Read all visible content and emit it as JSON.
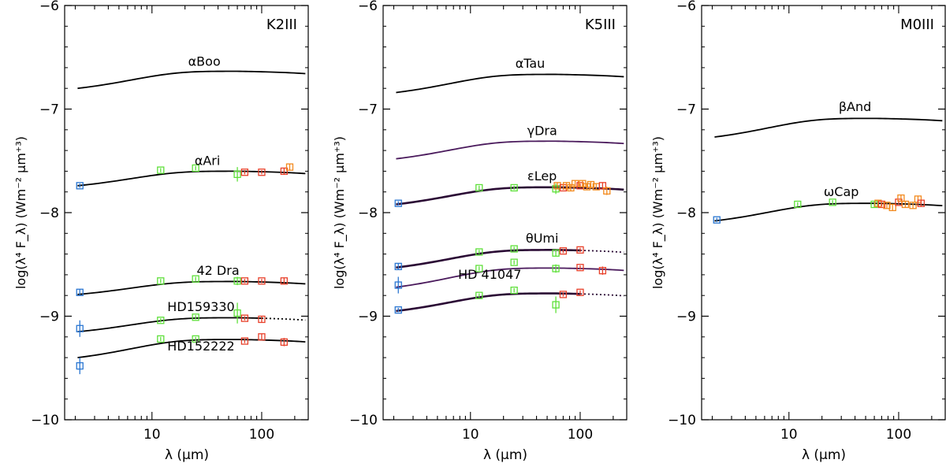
{
  "chart_data": [
    {
      "type": "line",
      "panel_label": "K2III",
      "xlabel": "λ (μm)",
      "ylabel": "log(λ⁴ F_λ) (Wm⁻² μm⁺³)",
      "xscale": "log",
      "xlim": [
        1.6,
        270
      ],
      "ylim": [
        -10,
        -6
      ],
      "xticks": [
        {
          "v": 10,
          "label": "10"
        },
        {
          "v": 100,
          "label": "100"
        }
      ],
      "yticks": [
        {
          "v": -10,
          "label": "−10"
        },
        {
          "v": -9,
          "label": "−9"
        },
        {
          "v": -8,
          "label": "−8"
        },
        {
          "v": -7,
          "label": "−7"
        },
        {
          "v": -6,
          "label": "−6"
        }
      ],
      "series": [
        {
          "name": "αBoo",
          "color": "#000000",
          "thick": false,
          "level": -6.635,
          "start": -6.8,
          "x_end": 250,
          "dotted_from": null,
          "label_pos": [
            30,
            -6.58
          ],
          "points": []
        },
        {
          "name": "αAri",
          "color": "#000000",
          "thick": false,
          "level": -7.6,
          "start": -7.74,
          "x_end": 250,
          "dotted_from": null,
          "label_pos": [
            32,
            -7.54
          ],
          "points": [
            {
              "x": 2.2,
              "y": -7.74,
              "c": "blue",
              "err": 0.02
            },
            {
              "x": 12,
              "y": -7.59,
              "c": "green",
              "err": 0.02
            },
            {
              "x": 25,
              "y": -7.57,
              "c": "green",
              "err": 0.02
            },
            {
              "x": 60,
              "y": -7.63,
              "c": "green",
              "err": 0.07
            },
            {
              "x": 70,
              "y": -7.61,
              "c": "red",
              "err": 0.02
            },
            {
              "x": 100,
              "y": -7.61,
              "c": "red",
              "err": 0.02
            },
            {
              "x": 160,
              "y": -7.6,
              "c": "red",
              "err": 0.03
            },
            {
              "x": 180,
              "y": -7.56,
              "c": "orange",
              "err": 0.03
            }
          ]
        },
        {
          "name": "42 Dra",
          "color": "#000000",
          "thick": false,
          "level": -8.665,
          "start": -8.79,
          "x_end": 250,
          "dotted_from": null,
          "label_pos": [
            40,
            -8.6
          ],
          "points": [
            {
              "x": 2.2,
              "y": -8.77,
              "c": "blue",
              "err": 0.03
            },
            {
              "x": 12,
              "y": -8.66,
              "c": "green",
              "err": 0.02
            },
            {
              "x": 25,
              "y": -8.64,
              "c": "green",
              "err": 0.02
            },
            {
              "x": 60,
              "y": -8.66,
              "c": "green",
              "err": 0.04
            },
            {
              "x": 70,
              "y": -8.66,
              "c": "red",
              "err": 0.02
            },
            {
              "x": 100,
              "y": -8.66,
              "c": "red",
              "err": 0.02
            },
            {
              "x": 160,
              "y": -8.66,
              "c": "red",
              "err": 0.03
            }
          ]
        },
        {
          "name": "HD159330",
          "color": "#000000",
          "thick": false,
          "level": -9.015,
          "start": -9.15,
          "x_end": 250,
          "dotted_from": 100,
          "label_pos": [
            28,
            -8.95
          ],
          "points": [
            {
              "x": 2.2,
              "y": -9.12,
              "c": "blue",
              "err": 0.08
            },
            {
              "x": 12,
              "y": -9.04,
              "c": "green",
              "err": 0.02
            },
            {
              "x": 25,
              "y": -9.01,
              "c": "green",
              "err": 0.02
            },
            {
              "x": 60,
              "y": -8.97,
              "c": "green",
              "err": 0.1
            },
            {
              "x": 70,
              "y": -9.02,
              "c": "red",
              "err": 0.02
            },
            {
              "x": 100,
              "y": -9.03,
              "c": "red",
              "err": 0.03
            }
          ]
        },
        {
          "name": "HD152222",
          "color": "#000000",
          "thick": false,
          "level": -9.225,
          "start": -9.4,
          "x_end": 250,
          "dotted_from": null,
          "label_pos": [
            28,
            -9.33
          ],
          "points": [
            {
              "x": 2.2,
              "y": -9.48,
              "c": "blue",
              "err": 0.08
            },
            {
              "x": 12,
              "y": -9.22,
              "c": "green",
              "err": 0.02
            },
            {
              "x": 25,
              "y": -9.22,
              "c": "green",
              "err": 0.02
            },
            {
              "x": 70,
              "y": -9.24,
              "c": "red",
              "err": 0.02
            },
            {
              "x": 100,
              "y": -9.2,
              "c": "red",
              "err": 0.03
            },
            {
              "x": 160,
              "y": -9.25,
              "c": "red",
              "err": 0.04
            }
          ]
        }
      ]
    },
    {
      "type": "line",
      "panel_label": "K5III",
      "xlabel": "λ (μm)",
      "ylabel": "log(λ⁴ F_λ) (Wm⁻² μm⁺³)",
      "xscale": "log",
      "xlim": [
        1.6,
        270
      ],
      "ylim": [
        -10,
        -6
      ],
      "xticks": [
        {
          "v": 10,
          "label": "10"
        },
        {
          "v": 100,
          "label": "100"
        }
      ],
      "yticks": [
        {
          "v": -10,
          "label": "−10"
        },
        {
          "v": -9,
          "label": "−9"
        },
        {
          "v": -8,
          "label": "−8"
        },
        {
          "v": -7,
          "label": "−7"
        },
        {
          "v": -6,
          "label": "−6"
        }
      ],
      "series": [
        {
          "name": "αTau",
          "color": "#000000",
          "thick": false,
          "level": -6.665,
          "start": -6.84,
          "x_end": 250,
          "dotted_from": null,
          "label_pos": [
            35,
            -6.6
          ],
          "points": []
        },
        {
          "name": "γDra",
          "color": "#4a1a5c",
          "thick": false,
          "level": -7.31,
          "start": -7.48,
          "x_end": 250,
          "dotted_from": null,
          "label_pos": [
            45,
            -7.25
          ],
          "points": []
        },
        {
          "name": "εLep",
          "color": "#2a0a34",
          "thick": true,
          "level": -7.755,
          "start": -7.92,
          "x_end": 250,
          "dotted_from": null,
          "label_pos": [
            45,
            -7.69
          ],
          "points": [
            {
              "x": 2.2,
              "y": -7.91,
              "c": "blue",
              "err": 0.02
            },
            {
              "x": 12,
              "y": -7.76,
              "c": "green",
              "err": 0.02
            },
            {
              "x": 25,
              "y": -7.76,
              "c": "green",
              "err": 0.02
            },
            {
              "x": 60,
              "y": -7.77,
              "c": "green",
              "err": 0.05
            },
            {
              "x": 62,
              "y": -7.74,
              "c": "orange",
              "err": 0.03
            },
            {
              "x": 70,
              "y": -7.76,
              "c": "red",
              "err": 0.02
            },
            {
              "x": 75,
              "y": -7.74,
              "c": "orange",
              "err": 0.03
            },
            {
              "x": 82,
              "y": -7.76,
              "c": "orange",
              "err": 0.03
            },
            {
              "x": 90,
              "y": -7.72,
              "c": "orange",
              "err": 0.03
            },
            {
              "x": 100,
              "y": -7.74,
              "c": "red",
              "err": 0.02
            },
            {
              "x": 105,
              "y": -7.72,
              "c": "orange",
              "err": 0.03
            },
            {
              "x": 115,
              "y": -7.75,
              "c": "orange",
              "err": 0.03
            },
            {
              "x": 125,
              "y": -7.73,
              "c": "orange",
              "err": 0.03
            },
            {
              "x": 140,
              "y": -7.75,
              "c": "orange",
              "err": 0.03
            },
            {
              "x": 160,
              "y": -7.74,
              "c": "red",
              "err": 0.03
            },
            {
              "x": 175,
              "y": -7.79,
              "c": "orange",
              "err": 0.04
            }
          ]
        },
        {
          "name": "θUmi",
          "color": "#2a0a34",
          "thick": true,
          "level": -8.36,
          "start": -8.53,
          "x_end": 250,
          "dotted_from": 100,
          "label_pos": [
            45,
            -8.29
          ],
          "points": [
            {
              "x": 2.2,
              "y": -8.52,
              "c": "blue",
              "err": 0.03
            },
            {
              "x": 12,
              "y": -8.38,
              "c": "green",
              "err": 0.02
            },
            {
              "x": 25,
              "y": -8.35,
              "c": "green",
              "err": 0.02
            },
            {
              "x": 60,
              "y": -8.39,
              "c": "green",
              "err": 0.03
            },
            {
              "x": 70,
              "y": -8.37,
              "c": "red",
              "err": 0.02
            },
            {
              "x": 100,
              "y": -8.36,
              "c": "red",
              "err": 0.02
            }
          ]
        },
        {
          "name": "HD 41047",
          "color": "#4a1a5c",
          "thick": false,
          "level": -8.535,
          "start": -8.72,
          "x_end": 250,
          "dotted_from": null,
          "label_pos": [
            15,
            -8.64
          ],
          "points": [
            {
              "x": 2.2,
              "y": -8.7,
              "c": "blue",
              "err": 0.08
            },
            {
              "x": 12,
              "y": -8.54,
              "c": "green",
              "err": 0.02
            },
            {
              "x": 25,
              "y": -8.48,
              "c": "green",
              "err": 0.02
            },
            {
              "x": 60,
              "y": -8.54,
              "c": "green",
              "err": 0.04
            },
            {
              "x": 100,
              "y": -8.53,
              "c": "red",
              "err": 0.02
            },
            {
              "x": 160,
              "y": -8.56,
              "c": "red",
              "err": 0.04
            }
          ]
        },
        {
          "name": "HD 41047 (thick)",
          "color": "#2a0a34",
          "thick": true,
          "level": -8.78,
          "start": -8.95,
          "x_end": 250,
          "dotted_from": 100,
          "label_pos": null,
          "points": [
            {
              "x": 2.2,
              "y": -8.94,
              "c": "blue",
              "err": 0.02
            },
            {
              "x": 12,
              "y": -8.8,
              "c": "green",
              "err": 0.02
            },
            {
              "x": 25,
              "y": -8.75,
              "c": "green",
              "err": 0.02
            },
            {
              "x": 60,
              "y": -8.89,
              "c": "green",
              "err": 0.08
            },
            {
              "x": 70,
              "y": -8.79,
              "c": "red",
              "err": 0.02
            },
            {
              "x": 100,
              "y": -8.77,
              "c": "red",
              "err": 0.02
            }
          ]
        }
      ]
    },
    {
      "type": "line",
      "panel_label": "M0III",
      "xlabel": "λ (μm)",
      "ylabel": "log(λ⁴ F_λ) (Wm⁻² μm⁺³)",
      "xscale": "log",
      "xlim": [
        1.6,
        270
      ],
      "ylim": [
        -10,
        -6
      ],
      "xticks": [
        {
          "v": 10,
          "label": "10"
        },
        {
          "v": 100,
          "label": "100"
        }
      ],
      "yticks": [
        {
          "v": -10,
          "label": "−10"
        },
        {
          "v": -9,
          "label": "−9"
        },
        {
          "v": -8,
          "label": "−8"
        },
        {
          "v": -7,
          "label": "−7"
        },
        {
          "v": -6,
          "label": "−6"
        }
      ],
      "series": [
        {
          "name": "βAnd",
          "color": "#000000",
          "thick": false,
          "level": -7.09,
          "start": -7.27,
          "x_end": 250,
          "dotted_from": null,
          "label_pos": [
            40,
            -7.02
          ],
          "points": []
        },
        {
          "name": "ωCap",
          "color": "#000000",
          "thick": false,
          "level": -7.91,
          "start": -8.08,
          "x_end": 250,
          "dotted_from": null,
          "label_pos": [
            30,
            -7.84
          ],
          "points": [
            {
              "x": 2.2,
              "y": -8.07,
              "c": "blue",
              "err": 0.02
            },
            {
              "x": 12,
              "y": -7.92,
              "c": "green",
              "err": 0.02
            },
            {
              "x": 25,
              "y": -7.9,
              "c": "green",
              "err": 0.02
            },
            {
              "x": 60,
              "y": -7.92,
              "c": "green",
              "err": 0.03
            },
            {
              "x": 65,
              "y": -7.91,
              "c": "orange",
              "err": 0.03
            },
            {
              "x": 70,
              "y": -7.92,
              "c": "red",
              "err": 0.02
            },
            {
              "x": 78,
              "y": -7.93,
              "c": "orange",
              "err": 0.03
            },
            {
              "x": 88,
              "y": -7.95,
              "c": "orange",
              "err": 0.03
            },
            {
              "x": 100,
              "y": -7.9,
              "c": "red",
              "err": 0.02
            },
            {
              "x": 105,
              "y": -7.86,
              "c": "orange",
              "err": 0.03
            },
            {
              "x": 115,
              "y": -7.92,
              "c": "orange",
              "err": 0.03
            },
            {
              "x": 135,
              "y": -7.93,
              "c": "orange",
              "err": 0.03
            },
            {
              "x": 150,
              "y": -7.87,
              "c": "orange",
              "err": 0.03
            },
            {
              "x": 160,
              "y": -7.91,
              "c": "red",
              "err": 0.03
            }
          ]
        }
      ]
    }
  ],
  "colors": {
    "blue": "#2a76d2",
    "green": "#5ee03a",
    "red": "#e8402a",
    "orange": "#f28a1e",
    "axis": "#000000"
  }
}
